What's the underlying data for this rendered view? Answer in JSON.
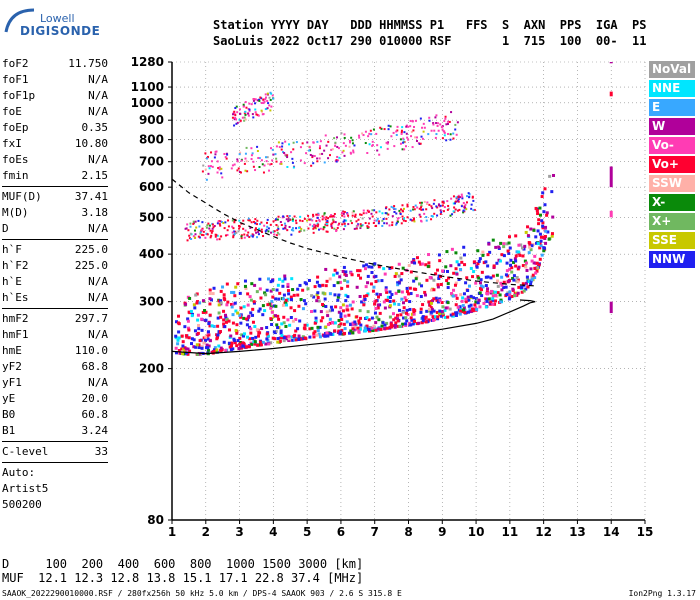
{
  "logo": {
    "top": "Lowell",
    "main": "DIGISONDE"
  },
  "header": {
    "line1": "Station YYYY DAY   DDD HHMMSS P1   FFS  S  AXN  PPS  IGA  PS",
    "line2": "SaoLuis 2022 Oct17 290 010000 RSF       1  715  100  00-  11"
  },
  "params_group1": [
    {
      "name": "foF2",
      "value": "11.750"
    },
    {
      "name": "foF1",
      "value": "N/A"
    },
    {
      "name": "foF1p",
      "value": "N/A"
    },
    {
      "name": "foE",
      "value": "N/A"
    },
    {
      "name": "foEp",
      "value": "0.35"
    },
    {
      "name": "fxI",
      "value": "10.80"
    },
    {
      "name": "foEs",
      "value": "N/A"
    },
    {
      "name": "fmin",
      "value": "2.15"
    }
  ],
  "params_group2": [
    {
      "name": "MUF(D)",
      "value": "37.41"
    },
    {
      "name": "M(D)",
      "value": "3.18"
    },
    {
      "name": "D",
      "value": "N/A"
    }
  ],
  "params_group3": [
    {
      "name": "h`F",
      "value": "225.0"
    },
    {
      "name": "h`F2",
      "value": "225.0"
    },
    {
      "name": "h`E",
      "value": "N/A"
    },
    {
      "name": "h`Es",
      "value": "N/A"
    }
  ],
  "params_group4": [
    {
      "name": "hmF2",
      "value": "297.7"
    },
    {
      "name": "hmF1",
      "value": "N/A"
    },
    {
      "name": "hmE",
      "value": "110.0"
    },
    {
      "name": "yF2",
      "value": "68.8"
    },
    {
      "name": "yF1",
      "value": "N/A"
    },
    {
      "name": "yE",
      "value": "20.0"
    },
    {
      "name": "B0",
      "value": "60.8"
    },
    {
      "name": "B1",
      "value": "3.24"
    }
  ],
  "params_group5": [
    {
      "name": "C-level",
      "value": "33"
    }
  ],
  "autoscaling": [
    "Auto:",
    "Artist5",
    "500200"
  ],
  "legend": [
    {
      "label": "NoVal",
      "color": "#a0a0a0"
    },
    {
      "label": "NNE",
      "color": "#00e6ff"
    },
    {
      "label": "E",
      "color": "#38a8ff"
    },
    {
      "label": "W",
      "color": "#b0009a"
    },
    {
      "label": "Vo-",
      "color": "#ff3cb4"
    },
    {
      "label": "Vo+",
      "color": "#ff0030"
    },
    {
      "label": "SSW",
      "color": "#ffb0a8"
    },
    {
      "label": "X-",
      "color": "#0a8a0a"
    },
    {
      "label": "X+",
      "color": "#70b860"
    },
    {
      "label": "SSE",
      "color": "#c8c800"
    },
    {
      "label": "NNW",
      "color": "#2020f0"
    }
  ],
  "muf_table": {
    "d_line": "D     100  200  400  600  800  1000 1500 3000 [km]",
    "muf_line": "MUF  12.1 12.3 12.8 13.8 15.1 17.1 22.8 37.4 [MHz]"
  },
  "footer": "SAAOK_2022290010000.RSF / 280fx256h 50 kHz 5.0 km / DPS-4 SAAOK 903 / 2.6 S 315.8 E",
  "footer_right": "Ion2Png 1.3.17",
  "chart_data": {
    "type": "scatter",
    "title": "",
    "xlabel": "",
    "ylabel": "",
    "xlim": [
      1,
      15
    ],
    "ylim": [
      80,
      1280
    ],
    "y_scale": "log",
    "x_ticks": [
      1,
      2,
      3,
      4,
      5,
      6,
      7,
      8,
      9,
      10,
      11,
      12,
      13,
      14,
      15
    ],
    "y_ticks": [
      80,
      200,
      300,
      400,
      500,
      600,
      700,
      800,
      900,
      1000,
      1100,
      1280
    ],
    "grid": "dotted",
    "traces": [
      {
        "name": "F2 trace",
        "points": [
          [
            1.1,
            220
          ],
          [
            1.5,
            218
          ],
          [
            2,
            218
          ],
          [
            2.5,
            222
          ],
          [
            3,
            226
          ],
          [
            3.5,
            230
          ],
          [
            4,
            233
          ],
          [
            4.5,
            237
          ],
          [
            5,
            240
          ],
          [
            5.5,
            243
          ],
          [
            6,
            246
          ],
          [
            6.5,
            249
          ],
          [
            7,
            252
          ],
          [
            7.5,
            256
          ],
          [
            8,
            260
          ],
          [
            8.5,
            265
          ],
          [
            9,
            271
          ],
          [
            9.5,
            277
          ],
          [
            10,
            285
          ],
          [
            10.5,
            294
          ],
          [
            11,
            305
          ],
          [
            11.4,
            318
          ],
          [
            11.7,
            340
          ],
          [
            11.9,
            380
          ],
          [
            12.1,
            430
          ],
          [
            12.3,
            450
          ]
        ]
      },
      {
        "name": "2F trace",
        "points": [
          [
            1.4,
            450
          ],
          [
            2,
            452
          ],
          [
            3,
            456
          ],
          [
            4,
            462
          ],
          [
            5,
            470
          ],
          [
            6,
            478
          ],
          [
            7,
            488
          ],
          [
            8,
            500
          ],
          [
            8.5,
            507
          ],
          [
            9,
            516
          ],
          [
            9.5,
            528
          ],
          [
            10,
            540
          ]
        ]
      },
      {
        "name": "3F trace",
        "points": [
          [
            1.9,
            660
          ],
          [
            2.5,
            665
          ],
          [
            3,
            675
          ],
          [
            4,
            695
          ],
          [
            5,
            718
          ],
          [
            6,
            740
          ],
          [
            7,
            765
          ],
          [
            8,
            795
          ],
          [
            8.5,
            812
          ],
          [
            9,
            832
          ],
          [
            9.5,
            850
          ]
        ]
      },
      {
        "name": "4F trace",
        "points": [
          [
            2.8,
            900
          ],
          [
            3.2,
            930
          ],
          [
            3.6,
            960
          ],
          [
            4,
            990
          ]
        ]
      }
    ],
    "profile_curve": [
      [
        1.0,
        222
      ],
      [
        2,
        219
      ],
      [
        3,
        222
      ],
      [
        4,
        226
      ],
      [
        5,
        231
      ],
      [
        6,
        236
      ],
      [
        7,
        241
      ],
      [
        8,
        247
      ],
      [
        9,
        254
      ],
      [
        10,
        263
      ],
      [
        10.5,
        270
      ],
      [
        11,
        282
      ],
      [
        11.4,
        292
      ],
      [
        11.6,
        298
      ],
      [
        11.75,
        300
      ],
      [
        11.6,
        302
      ],
      [
        11.3,
        303
      ]
    ],
    "muf_curve": [
      [
        1.0,
        630
      ],
      [
        1.5,
        580
      ],
      [
        2,
        545
      ],
      [
        2.5,
        512
      ],
      [
        3,
        485
      ],
      [
        3.5,
        465
      ],
      [
        4,
        445
      ],
      [
        4.5,
        428
      ],
      [
        5,
        414
      ],
      [
        6,
        393
      ],
      [
        7,
        376
      ],
      [
        8,
        362
      ],
      [
        9,
        350
      ],
      [
        10,
        340
      ],
      [
        11,
        333
      ],
      [
        11.75,
        330
      ]
    ],
    "vertical_marks": [
      {
        "x": 14.0,
        "y": [
          1270,
          1280
        ],
        "colors": [
          "#b0009a",
          "#ff3cb4"
        ]
      },
      {
        "x": 14.0,
        "y": [
          1040,
          1070
        ],
        "colors": [
          "#ff0030",
          "#b0009a"
        ]
      },
      {
        "x": 14.0,
        "y": [
          600,
          680
        ],
        "colors": [
          "#b0009a",
          "#ffd000"
        ]
      },
      {
        "x": 14.0,
        "y": [
          500,
          520
        ],
        "colors": [
          "#ff3cb4",
          "#ffd000"
        ]
      },
      {
        "x": 14.0,
        "y": [
          280,
          300
        ],
        "colors": [
          "#b0009a",
          "#ff3cb4"
        ]
      }
    ]
  }
}
